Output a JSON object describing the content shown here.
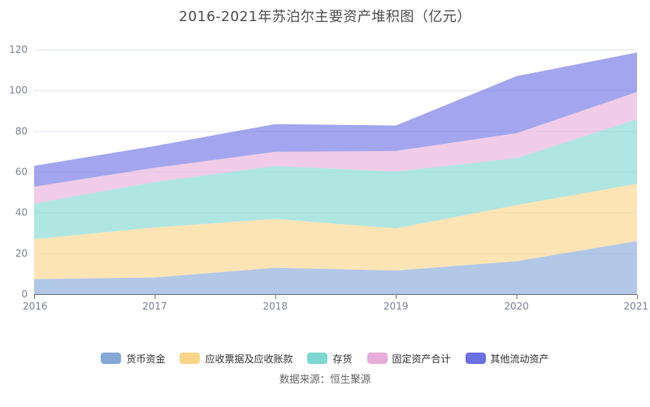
{
  "title": "2016-2021年苏泊尔主要资产堆积图（亿元）",
  "source": "数据来源：恒生聚源",
  "colors": {
    "background": "#ffffff",
    "gridline": "#e2e6f0",
    "axis_line": "#6e7079",
    "tick_label": "#7f8695",
    "title_text": "#4e4e4e",
    "legend_text": "#333333",
    "source_text": "#666666"
  },
  "chart_data": {
    "type": "area",
    "stacked": true,
    "title": "2016-2021年苏泊尔主要资产堆积图（亿元）",
    "xlabel": "",
    "ylabel": "",
    "x": [
      "2016",
      "2017",
      "2018",
      "2019",
      "2020",
      "2021"
    ],
    "ylim": [
      0,
      120
    ],
    "y_ticks": [
      0,
      20,
      40,
      60,
      80,
      100,
      120
    ],
    "grid": true,
    "legend_position": "bottom",
    "area_opacity": 0.62,
    "series": [
      {
        "name": "货币资金",
        "color": "#84a7d8",
        "values": [
          7.35,
          8.18,
          12.93,
          11.57,
          16.16,
          26.02
        ]
      },
      {
        "name": "应收票据及应收账款",
        "color": "#fbd488",
        "values": [
          19.61,
          24.52,
          23.95,
          20.65,
          27.47,
          28.13
        ]
      },
      {
        "name": "存货",
        "color": "#7ed7d1",
        "values": [
          17.45,
          22.29,
          25.95,
          27.91,
          23.09,
          31.62
        ]
      },
      {
        "name": "固定资产合计",
        "color": "#e7acda",
        "values": [
          8.33,
          6.98,
          6.99,
          10.1,
          12.2,
          13.4
        ]
      },
      {
        "name": "其他流动资产",
        "color": "#6b70e3",
        "values": [
          10.2,
          10.7,
          13.6,
          12.5,
          28.0,
          19.4
        ]
      }
    ]
  }
}
